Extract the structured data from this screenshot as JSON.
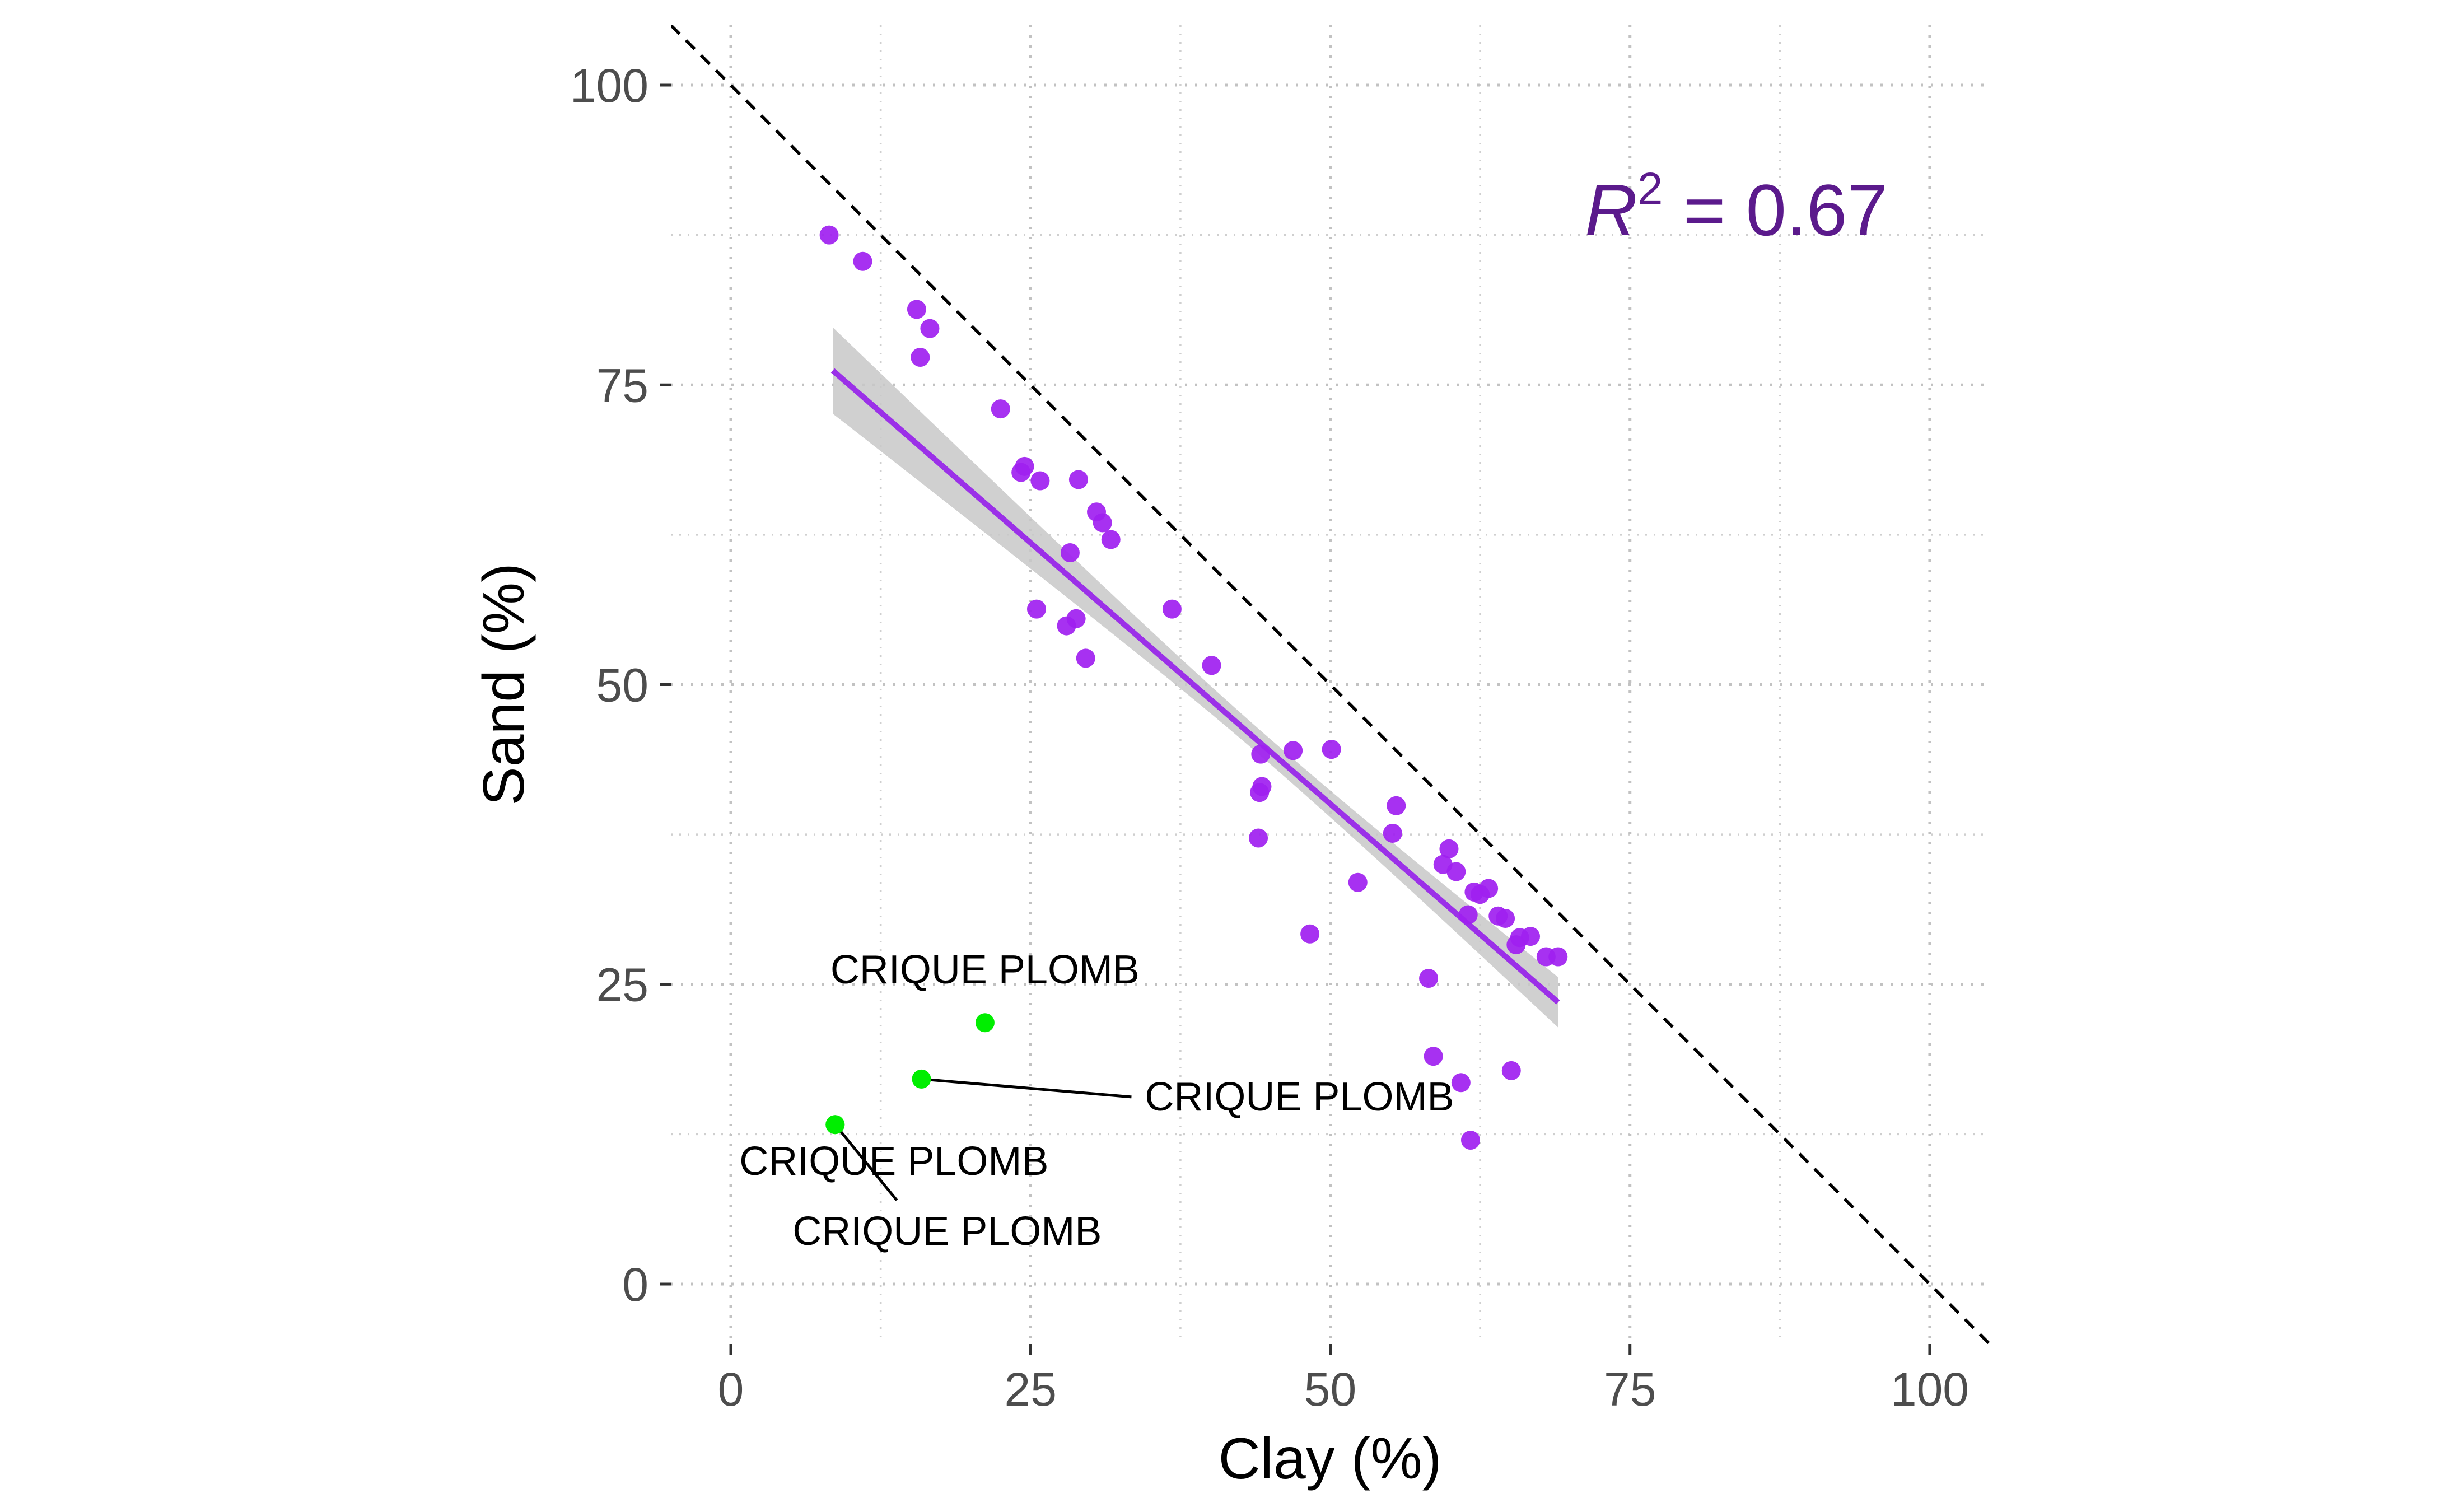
{
  "chart_data": {
    "type": "scatter",
    "xlabel": "Clay (%)",
    "ylabel": "Sand (%)",
    "xlim": [
      -5,
      105
    ],
    "ylim": [
      -5,
      105
    ],
    "x_ticks": [
      0,
      25,
      50,
      75,
      100
    ],
    "y_ticks": [
      0,
      25,
      50,
      75,
      100
    ],
    "grid": "dotted",
    "colors": {
      "points": "#a020f0",
      "highlight": "#00ee00",
      "fit": "#9b30e8",
      "band": "#c8c8c8",
      "annotation": "#5b1a8c"
    },
    "annotation": {
      "r_symbol": "R",
      "r_exponent": "2",
      "r_rest": " = 0.67"
    },
    "reference_line": {
      "x": [
        -5,
        105
      ],
      "y": [
        105,
        -5
      ],
      "style": "dashed"
    },
    "fit_line": {
      "x": [
        8.5,
        69
      ],
      "y": [
        76.2,
        23.5
      ],
      "band_upper": [
        79.8,
        25.5
      ],
      "band_lower": [
        72.6,
        21.3
      ],
      "band_center": [
        45,
        43
      ]
    },
    "points": [
      [
        8.2,
        87.5
      ],
      [
        11,
        85.3
      ],
      [
        15.5,
        81.3
      ],
      [
        16.6,
        79.7
      ],
      [
        15.8,
        77.3
      ],
      [
        22.5,
        73.0
      ],
      [
        24.5,
        68.2
      ],
      [
        24.2,
        67.7
      ],
      [
        25.8,
        67.0
      ],
      [
        29.0,
        67.1
      ],
      [
        30.5,
        64.4
      ],
      [
        31.0,
        63.5
      ],
      [
        31.7,
        62.1
      ],
      [
        28.3,
        61.0
      ],
      [
        25.5,
        56.3
      ],
      [
        28.8,
        55.5
      ],
      [
        28.0,
        54.9
      ],
      [
        29.6,
        52.2
      ],
      [
        36.8,
        56.3
      ],
      [
        40.1,
        51.6
      ],
      [
        46.9,
        44.5
      ],
      [
        50.1,
        44.6
      ],
      [
        44.2,
        44.2
      ],
      [
        44.3,
        41.5
      ],
      [
        44.1,
        41.0
      ],
      [
        44.0,
        37.2
      ],
      [
        55.5,
        39.9
      ],
      [
        55.2,
        37.6
      ],
      [
        52.3,
        33.5
      ],
      [
        48.3,
        29.2
      ],
      [
        59.9,
        36.3
      ],
      [
        59.4,
        35.0
      ],
      [
        60.5,
        34.4
      ],
      [
        62.0,
        32.7
      ],
      [
        63.2,
        33.0
      ],
      [
        62.5,
        32.5
      ],
      [
        61.5,
        30.8
      ],
      [
        64.0,
        30.7
      ],
      [
        64.6,
        30.5
      ],
      [
        65.8,
        28.9
      ],
      [
        65.5,
        28.3
      ],
      [
        66.7,
        29.0
      ],
      [
        68.0,
        27.3
      ],
      [
        69.0,
        27.3
      ],
      [
        58.2,
        25.5
      ],
      [
        58.6,
        19.0
      ],
      [
        60.9,
        16.8
      ],
      [
        65.1,
        17.8
      ],
      [
        61.7,
        12.0
      ]
    ],
    "highlighted_points": [
      {
        "x": 21.2,
        "y": 21.8,
        "label": "CRIQUE PLOMB"
      },
      {
        "x": 15.9,
        "y": 17.1,
        "label": "CRIQUE PLOMB"
      },
      {
        "x": 8.7,
        "y": 13.3,
        "label": "CRIQUE PLOMB"
      },
      {
        "x": 8.7,
        "y": 13.3,
        "label": "CRIQUE PLOMB"
      }
    ]
  }
}
